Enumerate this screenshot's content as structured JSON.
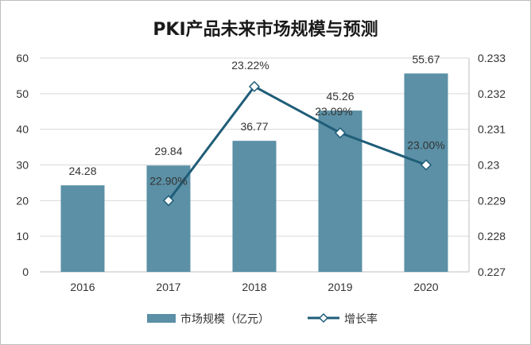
{
  "chart_data": {
    "type": "bar",
    "title": "PKI产品未来市场规模与预测",
    "categories": [
      "2016",
      "2017",
      "2018",
      "2019",
      "2020"
    ],
    "series": [
      {
        "name": "市场规模（亿元）",
        "type": "bar",
        "axis": "left",
        "values": [
          24.28,
          29.84,
          36.77,
          45.26,
          55.67
        ],
        "labels": [
          "24.28",
          "29.84",
          "36.77",
          "45.26",
          "55.67"
        ]
      },
      {
        "name": "增长率",
        "type": "line",
        "axis": "right",
        "values": [
          null,
          0.229,
          0.2322,
          0.2309,
          0.23
        ],
        "labels": [
          "",
          "22.90%",
          "23.22%",
          "23.09%",
          "23.00%"
        ]
      }
    ],
    "y_left": {
      "range": [
        0,
        60
      ],
      "ticks": [
        "0",
        "10",
        "20",
        "30",
        "40",
        "50",
        "60"
      ]
    },
    "y_right": {
      "range": [
        0.227,
        0.233
      ],
      "ticks": [
        "0.227",
        "0.228",
        "0.229",
        "0.23",
        "0.231",
        "0.232",
        "0.233"
      ]
    },
    "grid": true,
    "legend_position": "bottom"
  },
  "colors": {
    "bar": "#5b90a6",
    "line": "#1f5d78",
    "grid": "#d9d9d9",
    "axis": "#bfbfbf"
  }
}
